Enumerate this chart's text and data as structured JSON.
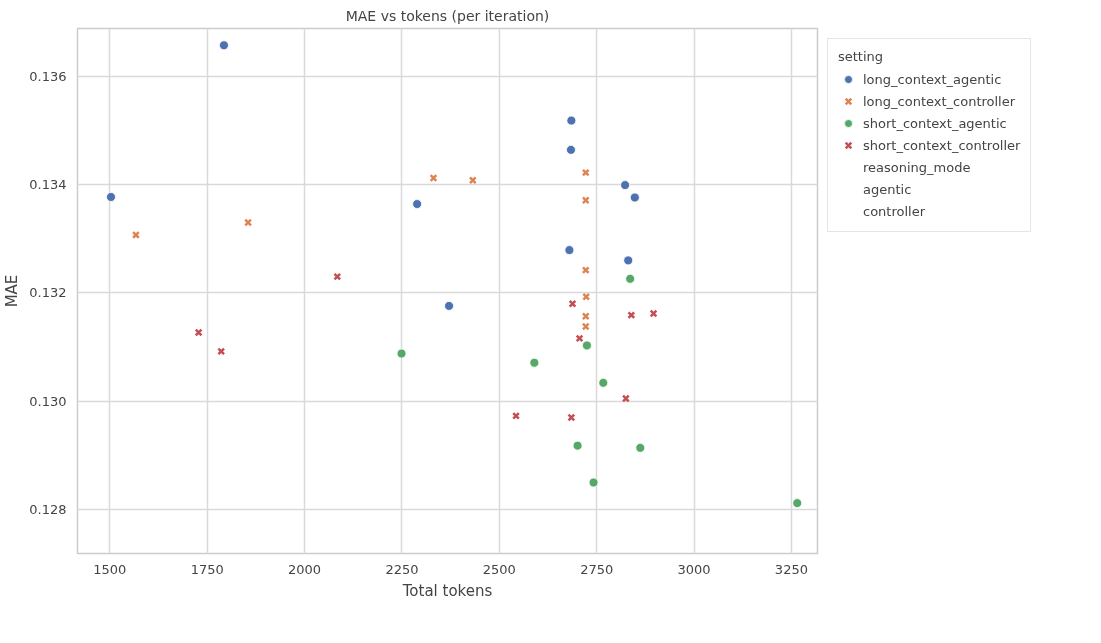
{
  "chart_data": {
    "type": "scatter",
    "title": "MAE vs tokens (per iteration)",
    "xlabel": "Total tokens",
    "ylabel": "MAE",
    "legend_title": "setting",
    "annotations": [
      "reasoning_mode",
      "agentic",
      "controller"
    ],
    "xlim": [
      1417,
      3317
    ],
    "xticks": [
      1500,
      1750,
      2000,
      2250,
      2500,
      2750,
      3000,
      3250
    ],
    "ylim": [
      0.12719,
      0.13688
    ],
    "yticks": [
      0.128,
      {
        "value": 0.13,
        "label": "0.130"
      },
      0.132,
      0.134,
      0.136
    ],
    "grid": true,
    "legend": "right",
    "series": [
      {
        "name": "long_context_agentic",
        "color": "#4c72b0",
        "marker": "circle",
        "x": [
          1793,
          1503,
          2289,
          2371,
          2685,
          2684,
          2823,
          2848,
          2680,
          2831
        ],
        "values": [
          0.13657,
          0.13377,
          0.13364,
          0.13176,
          0.13518,
          0.13464,
          0.13399,
          0.13376,
          0.13279,
          0.1326
        ]
      },
      {
        "name": "long_context_controller",
        "color": "#dd8452",
        "marker": "cross",
        "x": [
          1567,
          1855,
          2331,
          2432,
          2722,
          2722,
          2722,
          2723,
          2722,
          2722
        ],
        "values": [
          0.13307,
          0.1333,
          0.13412,
          0.13408,
          0.13422,
          0.13371,
          0.13242,
          0.13193,
          0.13157,
          0.13138
        ]
      },
      {
        "name": "short_context_agentic",
        "color": "#55a868",
        "marker": "circle",
        "x": [
          2249,
          2590,
          2725,
          2767,
          2836,
          2701,
          2862,
          2742,
          3265
        ],
        "values": [
          0.13088,
          0.13071,
          0.13103,
          0.13034,
          0.13226,
          0.12918,
          0.12914,
          0.1285,
          0.12812
        ]
      },
      {
        "name": "short_context_controller",
        "color": "#c44e52",
        "marker": "cross",
        "x": [
          1728,
          1786,
          2084,
          2543,
          2685,
          2688,
          2706,
          2825,
          2839,
          2896
        ],
        "values": [
          0.13127,
          0.13092,
          0.1323,
          0.12973,
          0.1297,
          0.1318,
          0.13116,
          0.13005,
          0.13159,
          0.13162
        ]
      }
    ]
  }
}
